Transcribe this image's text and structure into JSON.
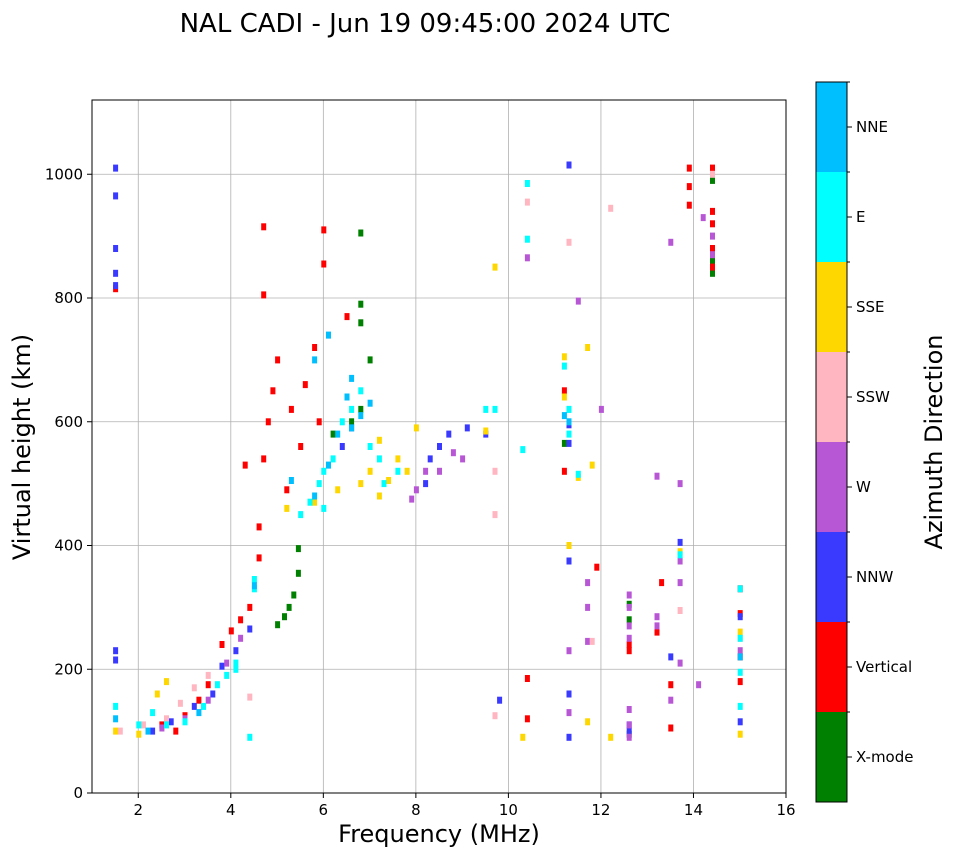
{
  "chart_data": {
    "type": "scatter",
    "title": "NAL CADI - Jun 19 09:45:00 2024 UTC",
    "xlabel": "Frequency (MHz)",
    "ylabel": "Virtual height (km)",
    "xlim": [
      1,
      16
    ],
    "ylim": [
      0,
      1120
    ],
    "xticks": [
      "2",
      "4",
      "6",
      "8",
      "10",
      "12",
      "14",
      "16"
    ],
    "xtick_values": [
      2,
      4,
      6,
      8,
      10,
      12,
      14,
      16
    ],
    "yticks": [
      "0",
      "200",
      "400",
      "600",
      "800",
      "1000"
    ],
    "ytick_values": [
      0,
      200,
      400,
      600,
      800,
      1000
    ],
    "grid": true,
    "colorbar": {
      "label": "Azimuth Direction",
      "categories": [
        {
          "name": "X-mode",
          "color": "#008000"
        },
        {
          "name": "Vertical",
          "color": "#ff0000"
        },
        {
          "name": "NNW",
          "color": "#3a3aff"
        },
        {
          "name": "W",
          "color": "#b857d6"
        },
        {
          "name": "SSW",
          "color": "#ffb6c1"
        },
        {
          "name": "SSE",
          "color": "#ffd700"
        },
        {
          "name": "E",
          "color": "#00ffff"
        },
        {
          "name": "NNE",
          "color": "#00bfff"
        }
      ]
    },
    "series": [
      {
        "name": "X-mode",
        "points": [
          [
            5.0,
            272
          ],
          [
            5.15,
            285
          ],
          [
            5.25,
            300
          ],
          [
            5.35,
            320
          ],
          [
            5.45,
            355
          ],
          [
            5.45,
            395
          ],
          [
            6.2,
            580
          ],
          [
            6.6,
            600
          ],
          [
            6.8,
            620
          ],
          [
            7.0,
            700
          ],
          [
            6.8,
            760
          ],
          [
            6.8,
            790
          ],
          [
            6.8,
            905
          ],
          [
            12.6,
            95
          ],
          [
            12.6,
            280
          ],
          [
            12.6,
            305
          ],
          [
            14.4,
            990
          ],
          [
            14.4,
            860
          ],
          [
            14.4,
            840
          ],
          [
            11.2,
            565
          ]
        ]
      },
      {
        "name": "Vertical",
        "points": [
          [
            1.5,
            815
          ],
          [
            2.5,
            110
          ],
          [
            2.8,
            100
          ],
          [
            3.0,
            125
          ],
          [
            3.3,
            150
          ],
          [
            3.5,
            175
          ],
          [
            3.8,
            240
          ],
          [
            4.0,
            262
          ],
          [
            4.2,
            280
          ],
          [
            4.4,
            300
          ],
          [
            4.6,
            380
          ],
          [
            4.6,
            430
          ],
          [
            4.7,
            540
          ],
          [
            4.8,
            600
          ],
          [
            4.9,
            650
          ],
          [
            5.0,
            700
          ],
          [
            5.2,
            490
          ],
          [
            5.3,
            620
          ],
          [
            5.5,
            560
          ],
          [
            5.6,
            660
          ],
          [
            5.8,
            720
          ],
          [
            5.9,
            600
          ],
          [
            6.0,
            855
          ],
          [
            4.7,
            915
          ],
          [
            4.7,
            805
          ],
          [
            6.0,
            910
          ],
          [
            6.5,
            770
          ],
          [
            4.3,
            530
          ],
          [
            13.9,
            1010
          ],
          [
            13.9,
            980
          ],
          [
            13.9,
            950
          ],
          [
            14.4,
            1010
          ],
          [
            14.4,
            940
          ],
          [
            14.4,
            920
          ],
          [
            14.4,
            880
          ],
          [
            14.4,
            850
          ],
          [
            12.6,
            230
          ],
          [
            12.6,
            240
          ],
          [
            13.3,
            340
          ],
          [
            13.2,
            260
          ],
          [
            13.5,
            175
          ],
          [
            13.5,
            105
          ],
          [
            15.0,
            180
          ],
          [
            15.0,
            220
          ],
          [
            15.0,
            290
          ],
          [
            15.0,
            330
          ],
          [
            10.4,
            185
          ],
          [
            10.4,
            120
          ],
          [
            11.2,
            650
          ],
          [
            11.2,
            520
          ],
          [
            11.9,
            365
          ]
        ]
      },
      {
        "name": "NNW",
        "points": [
          [
            1.5,
            1010
          ],
          [
            1.5,
            880
          ],
          [
            1.5,
            840
          ],
          [
            1.5,
            820
          ],
          [
            1.5,
            230
          ],
          [
            1.5,
            215
          ],
          [
            1.5,
            965
          ],
          [
            2.3,
            100
          ],
          [
            2.7,
            115
          ],
          [
            3.2,
            140
          ],
          [
            3.6,
            160
          ],
          [
            3.8,
            205
          ],
          [
            4.1,
            230
          ],
          [
            4.4,
            265
          ],
          [
            6.4,
            560
          ],
          [
            6.6,
            590
          ],
          [
            8.2,
            500
          ],
          [
            8.3,
            540
          ],
          [
            8.5,
            560
          ],
          [
            8.7,
            580
          ],
          [
            9.1,
            590
          ],
          [
            9.5,
            580
          ],
          [
            9.8,
            150
          ],
          [
            12.6,
            110
          ],
          [
            12.6,
            100
          ],
          [
            13.7,
            405
          ],
          [
            13.5,
            220
          ],
          [
            11.3,
            375
          ],
          [
            11.3,
            1015
          ],
          [
            11.3,
            595
          ],
          [
            11.3,
            565
          ],
          [
            11.3,
            160
          ],
          [
            11.3,
            90
          ],
          [
            15.0,
            115
          ],
          [
            15.0,
            285
          ]
        ]
      },
      {
        "name": "W",
        "points": [
          [
            2.5,
            105
          ],
          [
            3.0,
            120
          ],
          [
            3.5,
            150
          ],
          [
            3.9,
            210
          ],
          [
            4.2,
            250
          ],
          [
            7.9,
            475
          ],
          [
            8.0,
            490
          ],
          [
            8.2,
            520
          ],
          [
            8.5,
            520
          ],
          [
            8.8,
            550
          ],
          [
            9.0,
            540
          ],
          [
            12.6,
            250
          ],
          [
            12.6,
            270
          ],
          [
            12.6,
            300
          ],
          [
            12.6,
            320
          ],
          [
            12.6,
            135
          ],
          [
            12.6,
            110
          ],
          [
            12.6,
            90
          ],
          [
            13.5,
            890
          ],
          [
            13.7,
            500
          ],
          [
            13.7,
            375
          ],
          [
            13.7,
            340
          ],
          [
            13.7,
            210
          ],
          [
            14.2,
            930
          ],
          [
            14.1,
            175
          ],
          [
            14.4,
            900
          ],
          [
            14.4,
            870
          ],
          [
            13.2,
            285
          ],
          [
            13.2,
            270
          ],
          [
            13.2,
            512
          ],
          [
            13.5,
            150
          ],
          [
            10.4,
            865
          ],
          [
            11.3,
            230
          ],
          [
            11.3,
            130
          ],
          [
            11.5,
            795
          ],
          [
            11.7,
            340
          ],
          [
            11.7,
            300
          ],
          [
            11.7,
            245
          ],
          [
            12.0,
            620
          ],
          [
            15.0,
            230
          ]
        ]
      },
      {
        "name": "SSW",
        "points": [
          [
            1.6,
            100
          ],
          [
            2.1,
            110
          ],
          [
            2.6,
            120
          ],
          [
            2.9,
            145
          ],
          [
            3.2,
            170
          ],
          [
            3.5,
            190
          ],
          [
            4.4,
            155
          ],
          [
            9.7,
            520
          ],
          [
            9.7,
            450
          ],
          [
            9.7,
            125
          ],
          [
            10.4,
            955
          ],
          [
            11.3,
            890
          ],
          [
            11.3,
            620
          ],
          [
            11.8,
            245
          ],
          [
            12.2,
            945
          ],
          [
            13.7,
            295
          ],
          [
            14.4,
            1000
          ],
          [
            15.0,
            250
          ]
        ]
      },
      {
        "name": "SSE",
        "points": [
          [
            1.5,
            100
          ],
          [
            2.0,
            95
          ],
          [
            2.4,
            160
          ],
          [
            2.6,
            180
          ],
          [
            5.2,
            460
          ],
          [
            5.8,
            470
          ],
          [
            6.3,
            490
          ],
          [
            6.8,
            500
          ],
          [
            7.0,
            520
          ],
          [
            7.2,
            480
          ],
          [
            7.4,
            505
          ],
          [
            7.6,
            540
          ],
          [
            7.8,
            520
          ],
          [
            8.0,
            590
          ],
          [
            7.2,
            570
          ],
          [
            9.5,
            585
          ],
          [
            9.7,
            850
          ],
          [
            10.3,
            90
          ],
          [
            11.2,
            705
          ],
          [
            11.2,
            640
          ],
          [
            11.3,
            400
          ],
          [
            11.5,
            510
          ],
          [
            11.7,
            115
          ],
          [
            11.7,
            720
          ],
          [
            11.8,
            530
          ],
          [
            12.2,
            90
          ],
          [
            13.7,
            390
          ],
          [
            15.0,
            95
          ],
          [
            15.0,
            260
          ]
        ]
      },
      {
        "name": "E",
        "points": [
          [
            1.5,
            140
          ],
          [
            2.0,
            110
          ],
          [
            2.3,
            130
          ],
          [
            2.6,
            110
          ],
          [
            3.0,
            115
          ],
          [
            3.4,
            140
          ],
          [
            3.7,
            175
          ],
          [
            3.9,
            190
          ],
          [
            4.1,
            200
          ],
          [
            4.1,
            210
          ],
          [
            4.4,
            90
          ],
          [
            4.5,
            330
          ],
          [
            4.5,
            345
          ],
          [
            5.5,
            450
          ],
          [
            5.7,
            470
          ],
          [
            5.9,
            500
          ],
          [
            6.0,
            520
          ],
          [
            6.2,
            540
          ],
          [
            6.4,
            600
          ],
          [
            6.6,
            620
          ],
          [
            6.8,
            650
          ],
          [
            7.0,
            560
          ],
          [
            7.2,
            540
          ],
          [
            7.3,
            500
          ],
          [
            7.6,
            520
          ],
          [
            6.0,
            460
          ],
          [
            9.5,
            620
          ],
          [
            9.7,
            620
          ],
          [
            10.3,
            555
          ],
          [
            10.4,
            985
          ],
          [
            10.4,
            895
          ],
          [
            11.2,
            690
          ],
          [
            11.3,
            620
          ],
          [
            11.3,
            580
          ],
          [
            11.5,
            515
          ],
          [
            13.7,
            385
          ],
          [
            15.0,
            140
          ],
          [
            15.0,
            195
          ],
          [
            15.0,
            250
          ],
          [
            15.0,
            330
          ]
        ]
      },
      {
        "name": "NNE",
        "points": [
          [
            1.5,
            120
          ],
          [
            2.2,
            100
          ],
          [
            3.3,
            130
          ],
          [
            4.5,
            335
          ],
          [
            5.3,
            505
          ],
          [
            5.8,
            480
          ],
          [
            6.1,
            530
          ],
          [
            6.3,
            580
          ],
          [
            6.6,
            590
          ],
          [
            6.8,
            610
          ],
          [
            7.0,
            630
          ],
          [
            6.5,
            640
          ],
          [
            6.6,
            670
          ],
          [
            5.8,
            700
          ],
          [
            6.1,
            740
          ],
          [
            11.3,
            600
          ],
          [
            11.2,
            610
          ],
          [
            15.0,
            220
          ]
        ]
      }
    ]
  }
}
